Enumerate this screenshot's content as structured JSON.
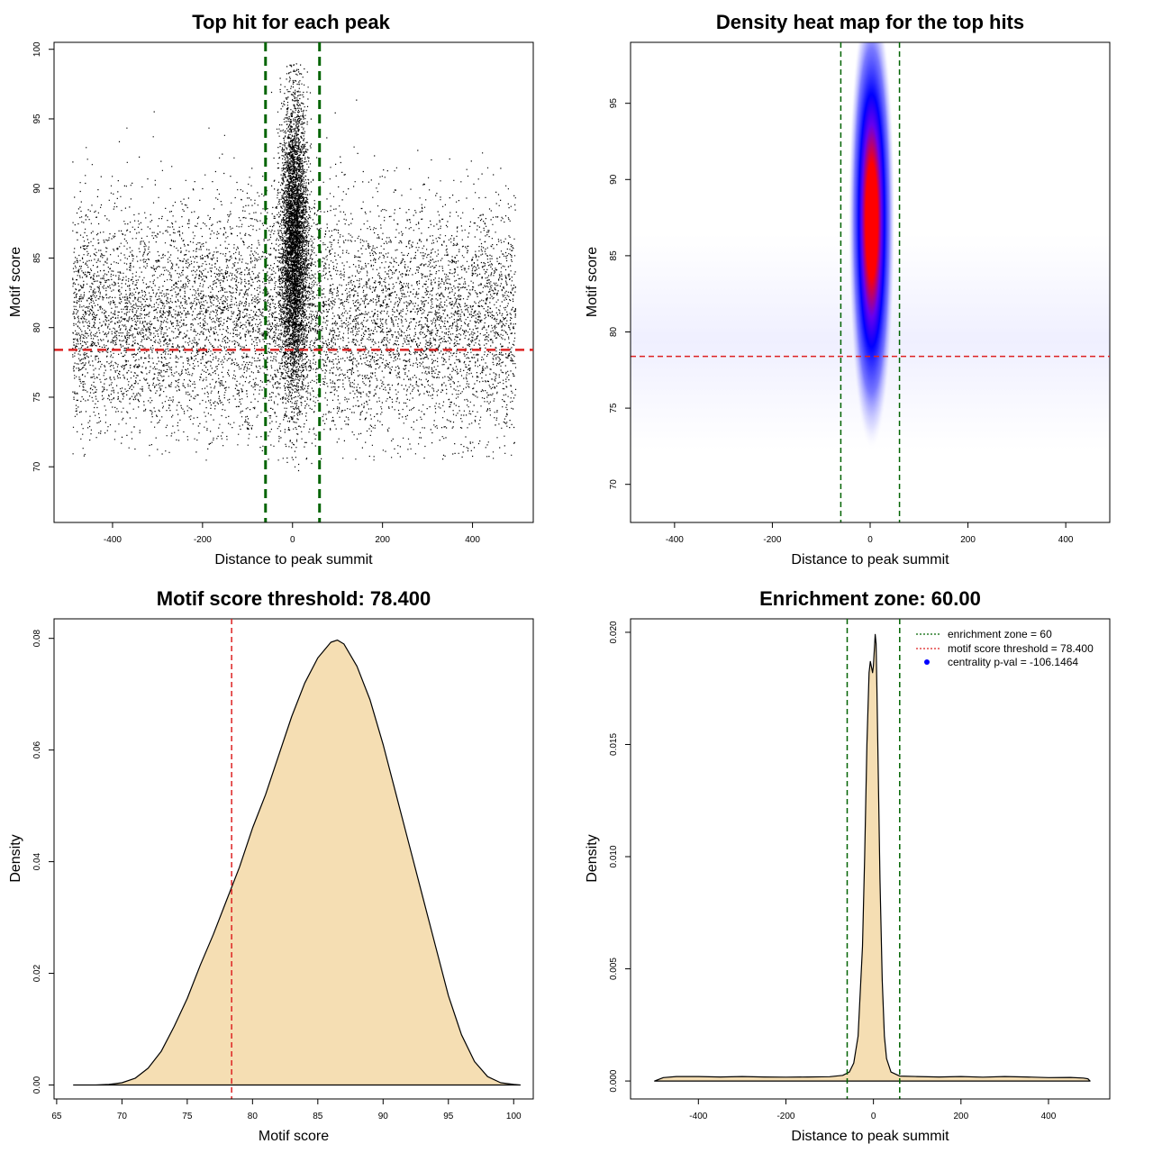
{
  "chart_data": [
    {
      "type": "scatter",
      "title": "Top hit for each peak",
      "xlabel": "Distance to peak summit",
      "ylabel": "Motif score",
      "xlim": [
        -530,
        535
      ],
      "ylim": [
        66,
        100.5
      ],
      "x_ticks": [
        "-400",
        "-200",
        "0",
        "200",
        "400"
      ],
      "y_ticks": [
        "70",
        "75",
        "80",
        "85",
        "90",
        "95",
        "100"
      ],
      "background": {
        "x_range": [
          -490,
          495
        ],
        "y_center": 80.5,
        "y_sd": 4.2,
        "y_range": [
          70.5,
          98
        ]
      },
      "central_cluster": {
        "x_center": 3,
        "x_sd": 15,
        "y_center": 86,
        "y_sd": 5.2,
        "y_range": [
          69,
          99
        ]
      },
      "threshold_y": 78.4,
      "enrichment_lines_x": [
        -60,
        60
      ],
      "colors": {
        "points": "#000000",
        "enrichment": "#006400",
        "threshold": "#dd2222"
      }
    },
    {
      "type": "heatmap",
      "title": "Density heat map for the top hits",
      "xlabel": "Distance to peak summit",
      "ylabel": "Motif score",
      "xlim": [
        -490,
        490
      ],
      "ylim": [
        67.5,
        99
      ],
      "x_ticks": [
        "-400",
        "-200",
        "0",
        "200",
        "400"
      ],
      "y_ticks": [
        "70",
        "75",
        "80",
        "85",
        "90",
        "95"
      ],
      "density_peak": {
        "x": 3,
        "y": 87.3
      },
      "threshold_y": 78.4,
      "enrichment_lines_x": [
        -60,
        60
      ],
      "colors": {
        "low": "#ffffff",
        "mid": "#0000ff",
        "high": "#ff0000",
        "enrichment": "#006400",
        "threshold": "#dd2222"
      }
    },
    {
      "type": "area",
      "title": "Motif score threshold: 78.400",
      "xlabel": "Motif score",
      "ylabel": "Density",
      "xlim": [
        64.8,
        101.5
      ],
      "ylim": [
        -0.0025,
        0.0835
      ],
      "x_ticks": [
        "65",
        "70",
        "75",
        "80",
        "85",
        "90",
        "95",
        "100"
      ],
      "y_ticks": [
        "0.00",
        "0.02",
        "0.04",
        "0.06",
        "0.08"
      ],
      "x": [
        66.3,
        68,
        69,
        70,
        71,
        72,
        73,
        74,
        75,
        76,
        77,
        78,
        79,
        80,
        81,
        82,
        83,
        84,
        85,
        86,
        86.5,
        87,
        88,
        89,
        90,
        91,
        92,
        93,
        94,
        95,
        96,
        97,
        98,
        99,
        100,
        100.5
      ],
      "y": [
        0.0,
        0.0,
        0.0001,
        0.0004,
        0.0012,
        0.003,
        0.006,
        0.0105,
        0.0155,
        0.0215,
        0.027,
        0.033,
        0.039,
        0.046,
        0.052,
        0.059,
        0.066,
        0.072,
        0.0765,
        0.0793,
        0.0797,
        0.079,
        0.075,
        0.069,
        0.061,
        0.052,
        0.043,
        0.034,
        0.025,
        0.016,
        0.009,
        0.0042,
        0.0015,
        0.0004,
        0.0001,
        0.0
      ],
      "threshold_x": 78.4,
      "colors": {
        "fill": "#f5deb3",
        "line": "#000000",
        "threshold": "#dd2222"
      }
    },
    {
      "type": "area",
      "title": "Enrichment zone: 60.00",
      "xlabel": "Distance to peak summit",
      "ylabel": "Density",
      "xlim": [
        -555,
        540
      ],
      "ylim": [
        -0.0008,
        0.0206
      ],
      "x_ticks": [
        "-400",
        "-200",
        "0",
        "200",
        "400"
      ],
      "y_ticks": [
        "0.000",
        "0.005",
        "0.010",
        "0.015",
        "0.020"
      ],
      "x": [
        -500,
        -480,
        -450,
        -400,
        -350,
        -300,
        -250,
        -200,
        -150,
        -100,
        -70,
        -55,
        -45,
        -35,
        -25,
        -20,
        -15,
        -10,
        -7,
        -4,
        -2,
        0,
        2,
        4,
        6,
        8,
        10,
        15,
        20,
        25,
        30,
        40,
        60,
        100,
        150,
        200,
        250,
        300,
        350,
        400,
        450,
        480,
        490,
        495
      ],
      "y": [
        0.0,
        0.00015,
        0.0002,
        0.0002,
        0.00018,
        0.0002,
        0.00018,
        0.00017,
        0.00018,
        0.00019,
        0.00025,
        0.0004,
        0.0008,
        0.002,
        0.006,
        0.01,
        0.015,
        0.0182,
        0.0187,
        0.0184,
        0.0182,
        0.0185,
        0.0192,
        0.0199,
        0.0195,
        0.0175,
        0.015,
        0.009,
        0.0045,
        0.002,
        0.001,
        0.0004,
        0.00022,
        0.0002,
        0.00018,
        0.0002,
        0.00017,
        0.0002,
        0.00018,
        0.00015,
        0.00016,
        0.00013,
        0.0001,
        0.0
      ],
      "enrichment_lines_x": [
        -60,
        60
      ],
      "legend": [
        {
          "label": "enrichment zone = 60",
          "marker": "dotted-line",
          "color": "#006400"
        },
        {
          "label": "motif score threshold = 78.400",
          "marker": "dotted-line",
          "color": "#dd2222"
        },
        {
          "label": "centrality p-val = -106.1464",
          "marker": "point",
          "color": "#0000ff"
        }
      ],
      "legend_position": "top-right",
      "colors": {
        "fill": "#f5deb3",
        "line": "#000000",
        "enrichment": "#006400",
        "threshold": "#dd2222"
      }
    }
  ]
}
